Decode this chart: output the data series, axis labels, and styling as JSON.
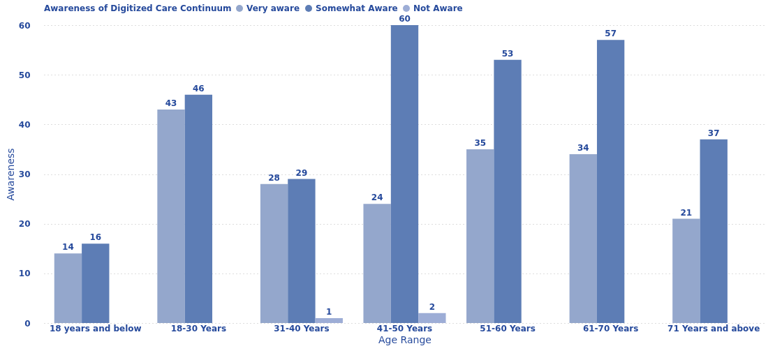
{
  "chart_data": {
    "type": "bar",
    "legend_title": "Awareness of Digitized Care Continuum",
    "xlabel": "Age Range",
    "ylabel": "Awareness",
    "categories": [
      "18 years and below",
      "18-30 Years",
      "31-40 Years",
      "41-50 Years",
      "51-60 Years",
      "61-70 Years",
      "71 Years and above"
    ],
    "series": [
      {
        "name": "Very aware",
        "color": "#94a7cc",
        "values": [
          14,
          43,
          28,
          24,
          35,
          34,
          21
        ]
      },
      {
        "name": "Somewhat Aware",
        "color": "#5d7db5",
        "values": [
          16,
          46,
          29,
          60,
          53,
          57,
          37
        ]
      },
      {
        "name": "Not Aware",
        "color": "#9dadd6",
        "values": [
          null,
          null,
          1,
          2,
          null,
          null,
          null
        ]
      }
    ],
    "ylim": [
      0,
      60
    ],
    "yticks": [
      0,
      10,
      20,
      30,
      40,
      50,
      60
    ],
    "grid": "y",
    "legend": "top left",
    "data_labels": true
  }
}
